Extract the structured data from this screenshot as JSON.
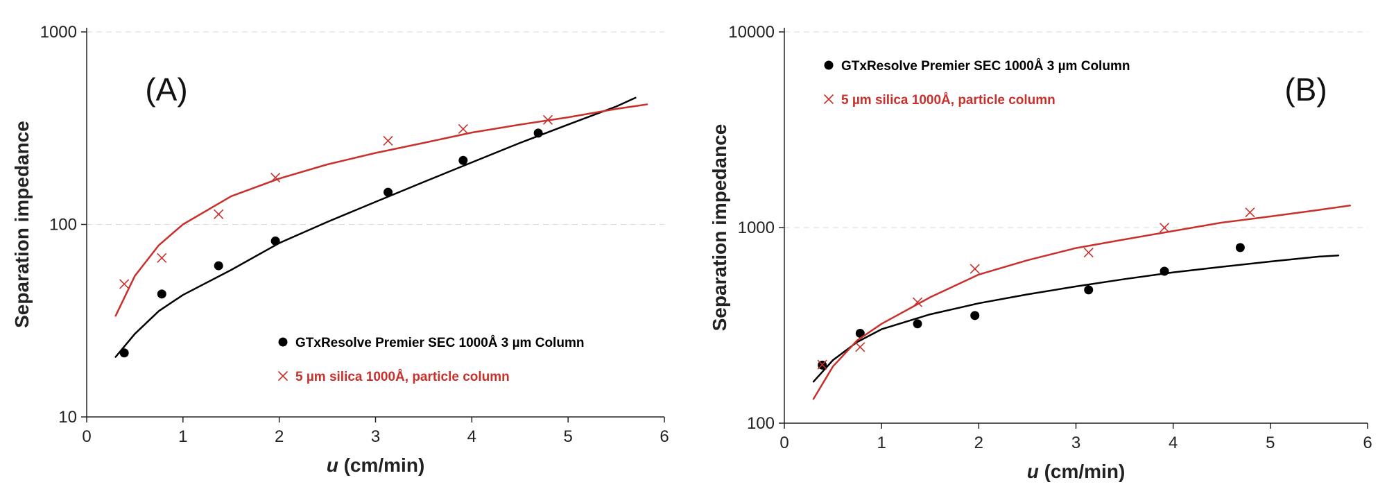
{
  "chart_data": [
    {
      "type": "scatter",
      "panel_label": "(A)",
      "xlabel_var": "u",
      "xlabel_unit": " (cm/min)",
      "ylabel": "Separation impedance",
      "xlim": [
        0,
        6
      ],
      "ylim": [
        10,
        1000
      ],
      "yscale": "log",
      "x_ticks": [
        "0",
        "1",
        "2",
        "3",
        "4",
        "5",
        "6"
      ],
      "y_ticks": [
        "10",
        "100",
        "1000"
      ],
      "grid": "horizontal",
      "legend_position": "bottom-right",
      "series": [
        {
          "name": "GTxResolve Premier SEC 1000Å 3 µm Column",
          "marker": "circle",
          "color": "#000000",
          "points": [
            [
              0.39,
              21.5
            ],
            [
              0.78,
              43.5
            ],
            [
              1.37,
              61
            ],
            [
              1.96,
              82
            ],
            [
              3.13,
              147
            ],
            [
              3.91,
              215
            ],
            [
              4.69,
              298
            ]
          ],
          "fit": [
            [
              0.3,
              20.5
            ],
            [
              0.5,
              27
            ],
            [
              0.75,
              35.5
            ],
            [
              1.0,
              43
            ],
            [
              1.5,
              58
            ],
            [
              2.0,
              80
            ],
            [
              2.5,
              103
            ],
            [
              3.0,
              131
            ],
            [
              3.5,
              166
            ],
            [
              4.0,
              210
            ],
            [
              4.5,
              265
            ],
            [
              5.0,
              330
            ],
            [
              5.5,
              410
            ],
            [
              5.7,
              455
            ]
          ]
        },
        {
          "name": "5 µm silica 1000Å, particle column",
          "marker": "x",
          "color": "#c8302c",
          "points": [
            [
              0.39,
              49
            ],
            [
              0.78,
              67
            ],
            [
              1.37,
              113
            ],
            [
              1.96,
              175
            ],
            [
              3.13,
              272
            ],
            [
              3.91,
              313
            ],
            [
              4.79,
              349
            ]
          ],
          "fit": [
            [
              0.3,
              33.5
            ],
            [
              0.5,
              54
            ],
            [
              0.75,
              78
            ],
            [
              1.0,
              100
            ],
            [
              1.5,
              140
            ],
            [
              2.0,
              173
            ],
            [
              2.5,
              205
            ],
            [
              3.0,
              235
            ],
            [
              3.5,
              265
            ],
            [
              4.0,
              300
            ],
            [
              4.5,
              330
            ],
            [
              5.0,
              360
            ],
            [
              5.5,
              398
            ],
            [
              5.82,
              420
            ]
          ]
        }
      ]
    },
    {
      "type": "scatter",
      "panel_label": "(B)",
      "xlabel_var": "u",
      "xlabel_unit": " (cm/min)",
      "ylabel": "Separation impedance",
      "xlim": [
        0,
        6
      ],
      "ylim": [
        100,
        10000
      ],
      "yscale": "log",
      "x_ticks": [
        "0",
        "1",
        "2",
        "3",
        "4",
        "5",
        "6"
      ],
      "y_ticks": [
        "100",
        "1000",
        "10000"
      ],
      "grid": "horizontal",
      "legend_position": "top-left",
      "series": [
        {
          "name": "GTxResolve Premier SEC 1000Å 3 µm Column",
          "marker": "circle",
          "color": "#000000",
          "points": [
            [
              0.39,
              198
            ],
            [
              0.78,
              288
            ],
            [
              1.37,
              322
            ],
            [
              1.96,
              355
            ],
            [
              3.13,
              480
            ],
            [
              3.91,
              598
            ],
            [
              4.69,
              790
            ]
          ],
          "fit": [
            [
              0.3,
              163
            ],
            [
              0.5,
              210
            ],
            [
              0.75,
              260
            ],
            [
              1.0,
              302
            ],
            [
              1.5,
              360
            ],
            [
              2.0,
              410
            ],
            [
              2.5,
              455
            ],
            [
              3.0,
              500
            ],
            [
              3.5,
              545
            ],
            [
              4.0,
              590
            ],
            [
              4.5,
              630
            ],
            [
              5.0,
              670
            ],
            [
              5.5,
              710
            ],
            [
              5.7,
              720
            ]
          ]
        },
        {
          "name": "5 µm silica 1000Å, particle column",
          "marker": "x",
          "color": "#c8302c",
          "points": [
            [
              0.39,
              199
            ],
            [
              0.78,
              245
            ],
            [
              1.37,
              415
            ],
            [
              1.96,
              615
            ],
            [
              3.13,
              745
            ],
            [
              3.91,
              998
            ],
            [
              4.79,
              1195
            ]
          ],
          "fit": [
            [
              0.3,
              133
            ],
            [
              0.5,
              195
            ],
            [
              0.75,
              265
            ],
            [
              1.0,
              322
            ],
            [
              1.5,
              440
            ],
            [
              2.0,
              575
            ],
            [
              2.5,
              680
            ],
            [
              3.0,
              785
            ],
            [
              3.5,
              870
            ],
            [
              4.0,
              960
            ],
            [
              4.5,
              1060
            ],
            [
              5.0,
              1140
            ],
            [
              5.5,
              1230
            ],
            [
              5.82,
              1295
            ]
          ]
        }
      ]
    }
  ]
}
